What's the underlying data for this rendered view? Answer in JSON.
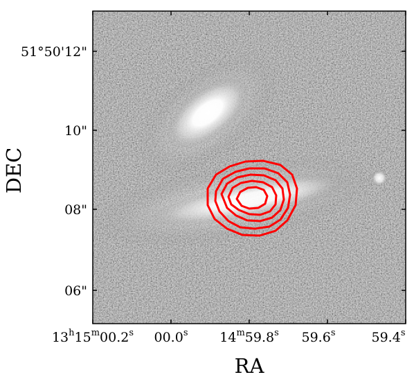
{
  "figure": {
    "x_axis_title": "RA",
    "y_axis_title": "DEC",
    "contour_color": "#ff0000",
    "frame_color": "#000000",
    "contour_levels": 5
  },
  "y_ticks": [
    {
      "text": "51°50'12\""
    },
    {
      "text": "10\""
    },
    {
      "text": "08\""
    },
    {
      "text": "06\""
    }
  ],
  "x_ticks": [
    {
      "main": "13",
      "s1": "h",
      "mid": "15",
      "s2": "m",
      "tail": "00.2",
      "s3": "s"
    },
    {
      "main": "00.0",
      "s1": "s"
    },
    {
      "main": "14",
      "s1": "m",
      "mid": "59.8",
      "s2": "s"
    },
    {
      "main": "59.6",
      "s1": "s"
    },
    {
      "main": "59.4",
      "s1": "s"
    }
  ]
}
